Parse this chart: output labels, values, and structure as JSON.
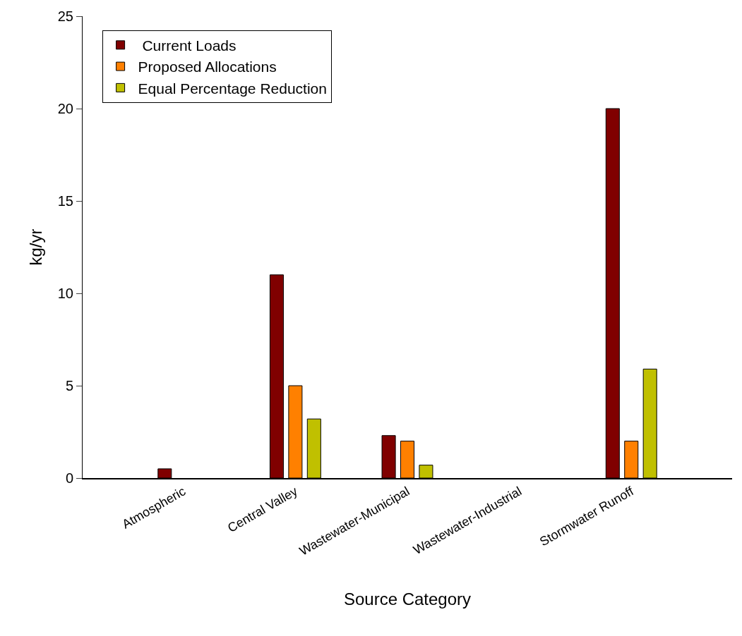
{
  "chart_data": {
    "type": "bar",
    "xlabel": "Source Category",
    "ylabel": "kg/yr",
    "categories": [
      "Atmospheric",
      "Central Valley",
      "Wastewater-Municipal",
      "Wastewater-Industrial",
      "Stormwater Runoff"
    ],
    "series": [
      {
        "name": " Current Loads",
        "color": "#800000",
        "values": [
          0.5,
          11,
          2.3,
          null,
          20
        ]
      },
      {
        "name": "Proposed Allocations",
        "color": "#ff8000",
        "values": [
          null,
          5,
          2,
          null,
          2
        ]
      },
      {
        "name": "Equal Percentage Reduction",
        "color": "#c0c000",
        "values": [
          null,
          3.2,
          0.7,
          null,
          5.9
        ]
      }
    ],
    "ylim": [
      0,
      25
    ],
    "yticks": [
      0,
      5,
      10,
      15,
      20,
      25
    ],
    "legend": "top left"
  }
}
